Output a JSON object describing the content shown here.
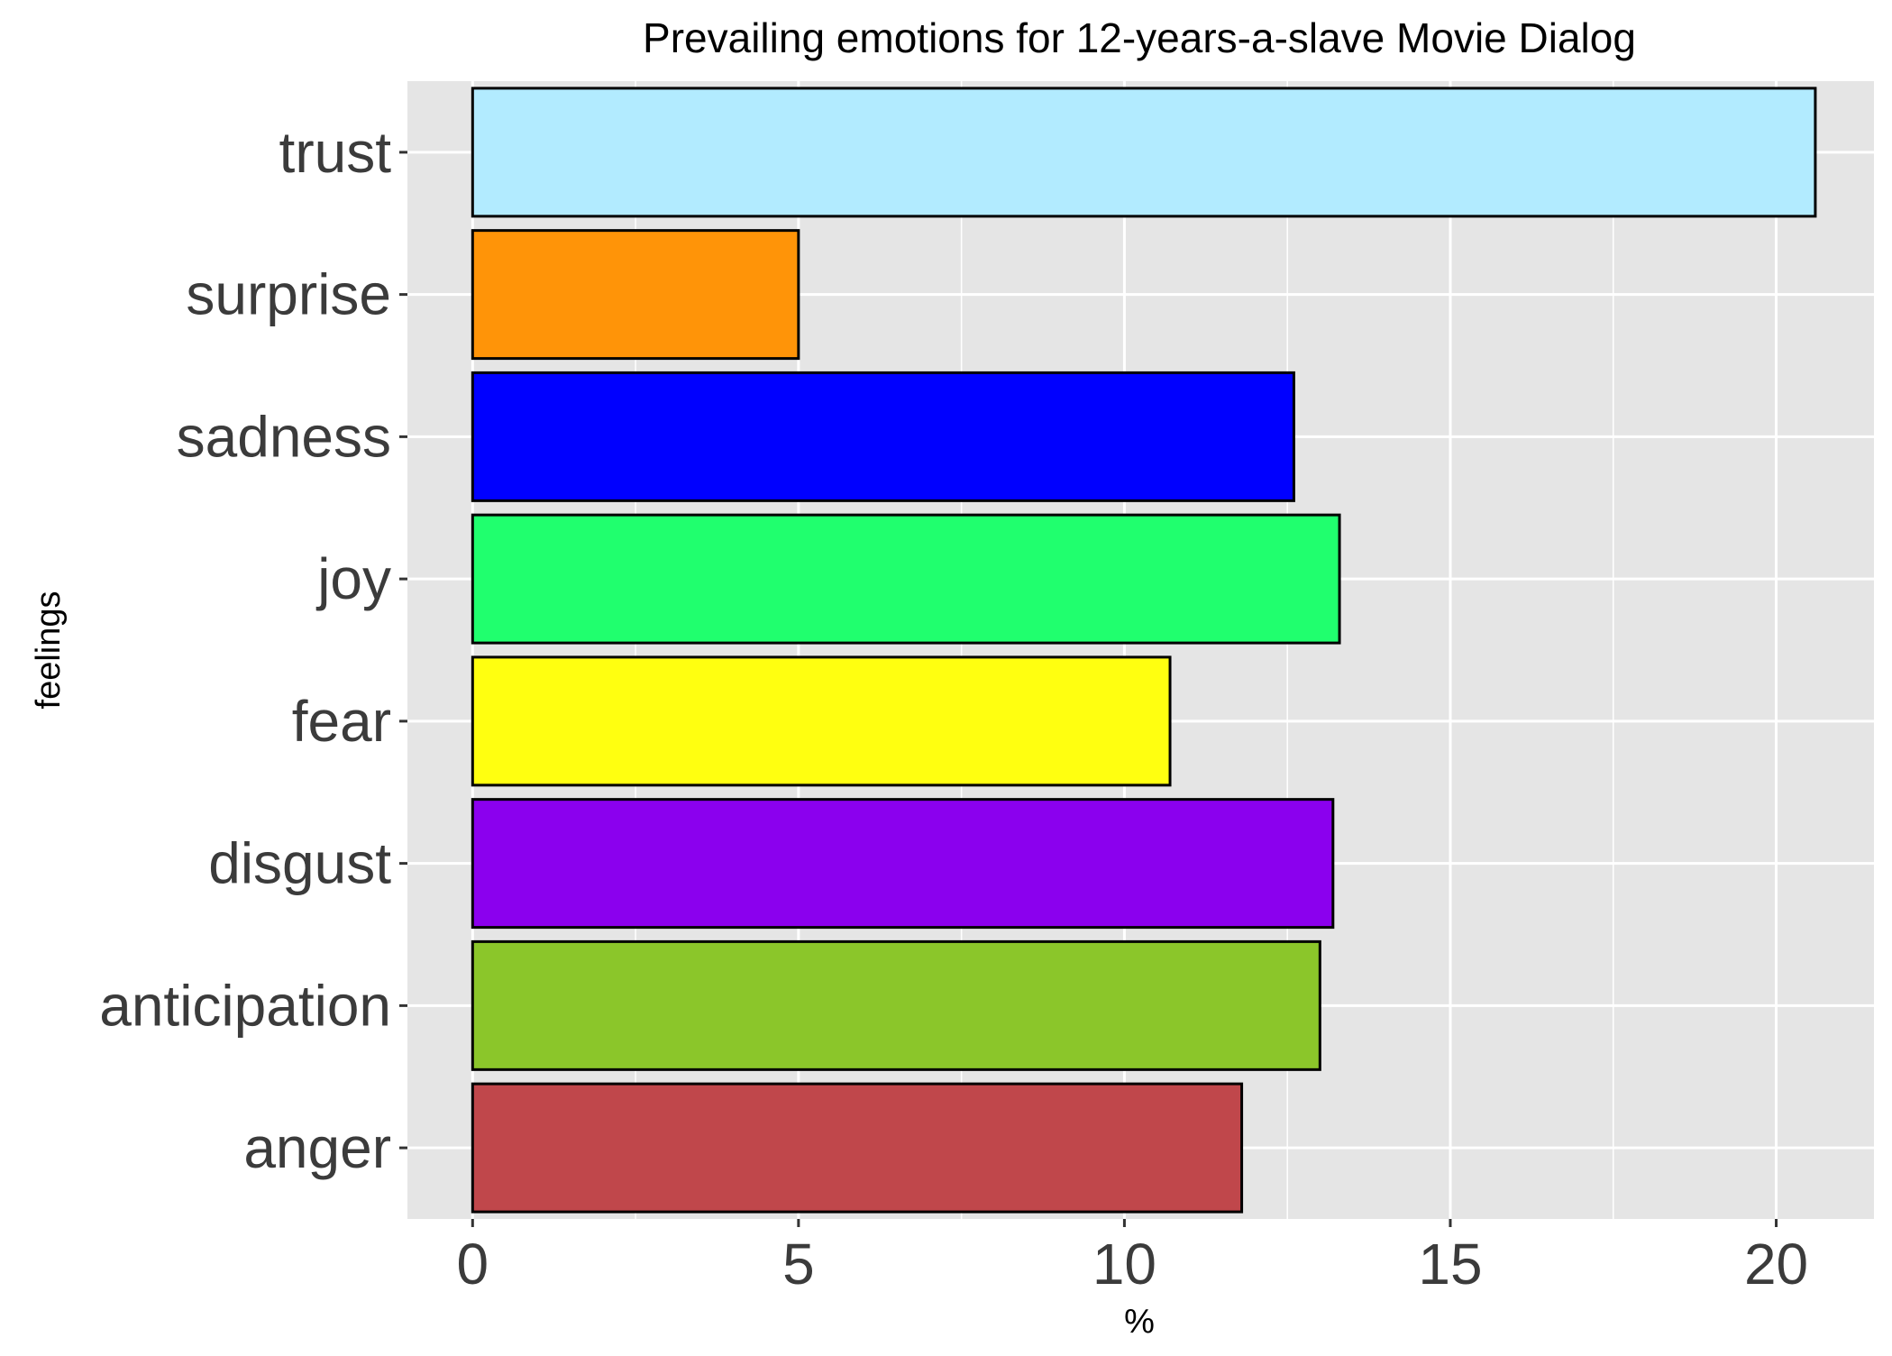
{
  "chart_data": {
    "type": "bar",
    "orientation": "horizontal",
    "title": "Prevailing emotions for 12-years-a-slave Movie Dialog",
    "xlabel": "%",
    "ylabel": "feelings",
    "categories": [
      "trust",
      "surprise",
      "sadness",
      "joy",
      "fear",
      "disgust",
      "anticipation",
      "anger"
    ],
    "values": [
      20.6,
      5.0,
      12.6,
      13.3,
      10.7,
      13.2,
      13.0,
      11.8
    ],
    "colors": [
      "#B2EBFF",
      "#FF9408",
      "#0000FF",
      "#20FF6E",
      "#FFFF10",
      "#8B00EE",
      "#8BC62A",
      "#C0474B"
    ],
    "xlim": [
      -1,
      21.5
    ],
    "xticks": [
      0,
      5,
      10,
      15,
      20
    ],
    "xtick_labels": [
      "0",
      "5",
      "10",
      "15",
      "20"
    ],
    "grid": true,
    "legend": "none",
    "panel_background": "#E5E5E5",
    "grid_color": "#FFFFFF",
    "bar_outline": "#000000",
    "text_color": "#3B3B3B"
  }
}
